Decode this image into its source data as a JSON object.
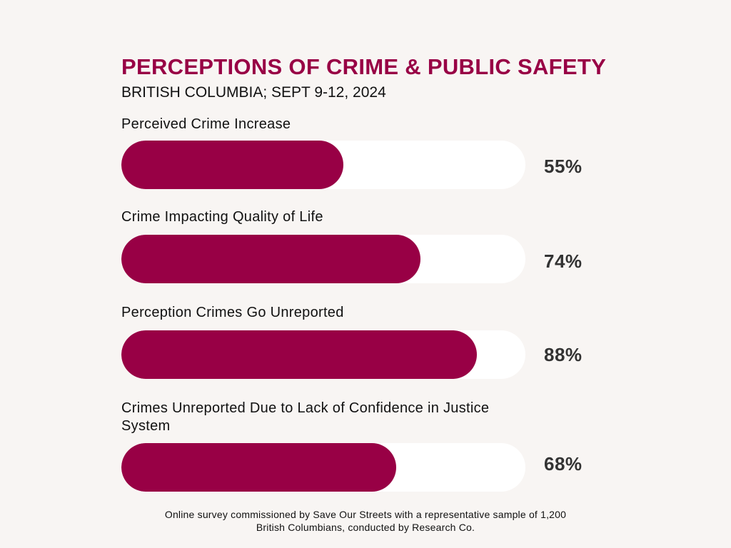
{
  "colors": {
    "background": "#f8f5f3",
    "accent": "#980045",
    "track": "#ffffff",
    "value_text": "#333333"
  },
  "chart_data": {
    "type": "bar",
    "orientation": "horizontal",
    "title": "PERCEPTIONS OF CRIME & PUBLIC SAFETY",
    "subtitle": "BRITISH COLUMBIA; SEPT 9-12, 2024",
    "categories": [
      "Perceived Crime Increase",
      "Crime Impacting Quality of Life",
      "Perception Crimes Go Unreported",
      "Crimes Unreported Due to Lack of Confidence in Justice System"
    ],
    "values": [
      55,
      74,
      88,
      68
    ],
    "value_labels": [
      "55%",
      "74%",
      "88%",
      "68%"
    ],
    "xlim": [
      0,
      100
    ],
    "grid": false,
    "legend": "none"
  },
  "footnote": {
    "line1": "Online survey commissioned by Save Our Streets with a representative sample of 1,200",
    "line2": "British Columbians, conducted by Research Co."
  }
}
